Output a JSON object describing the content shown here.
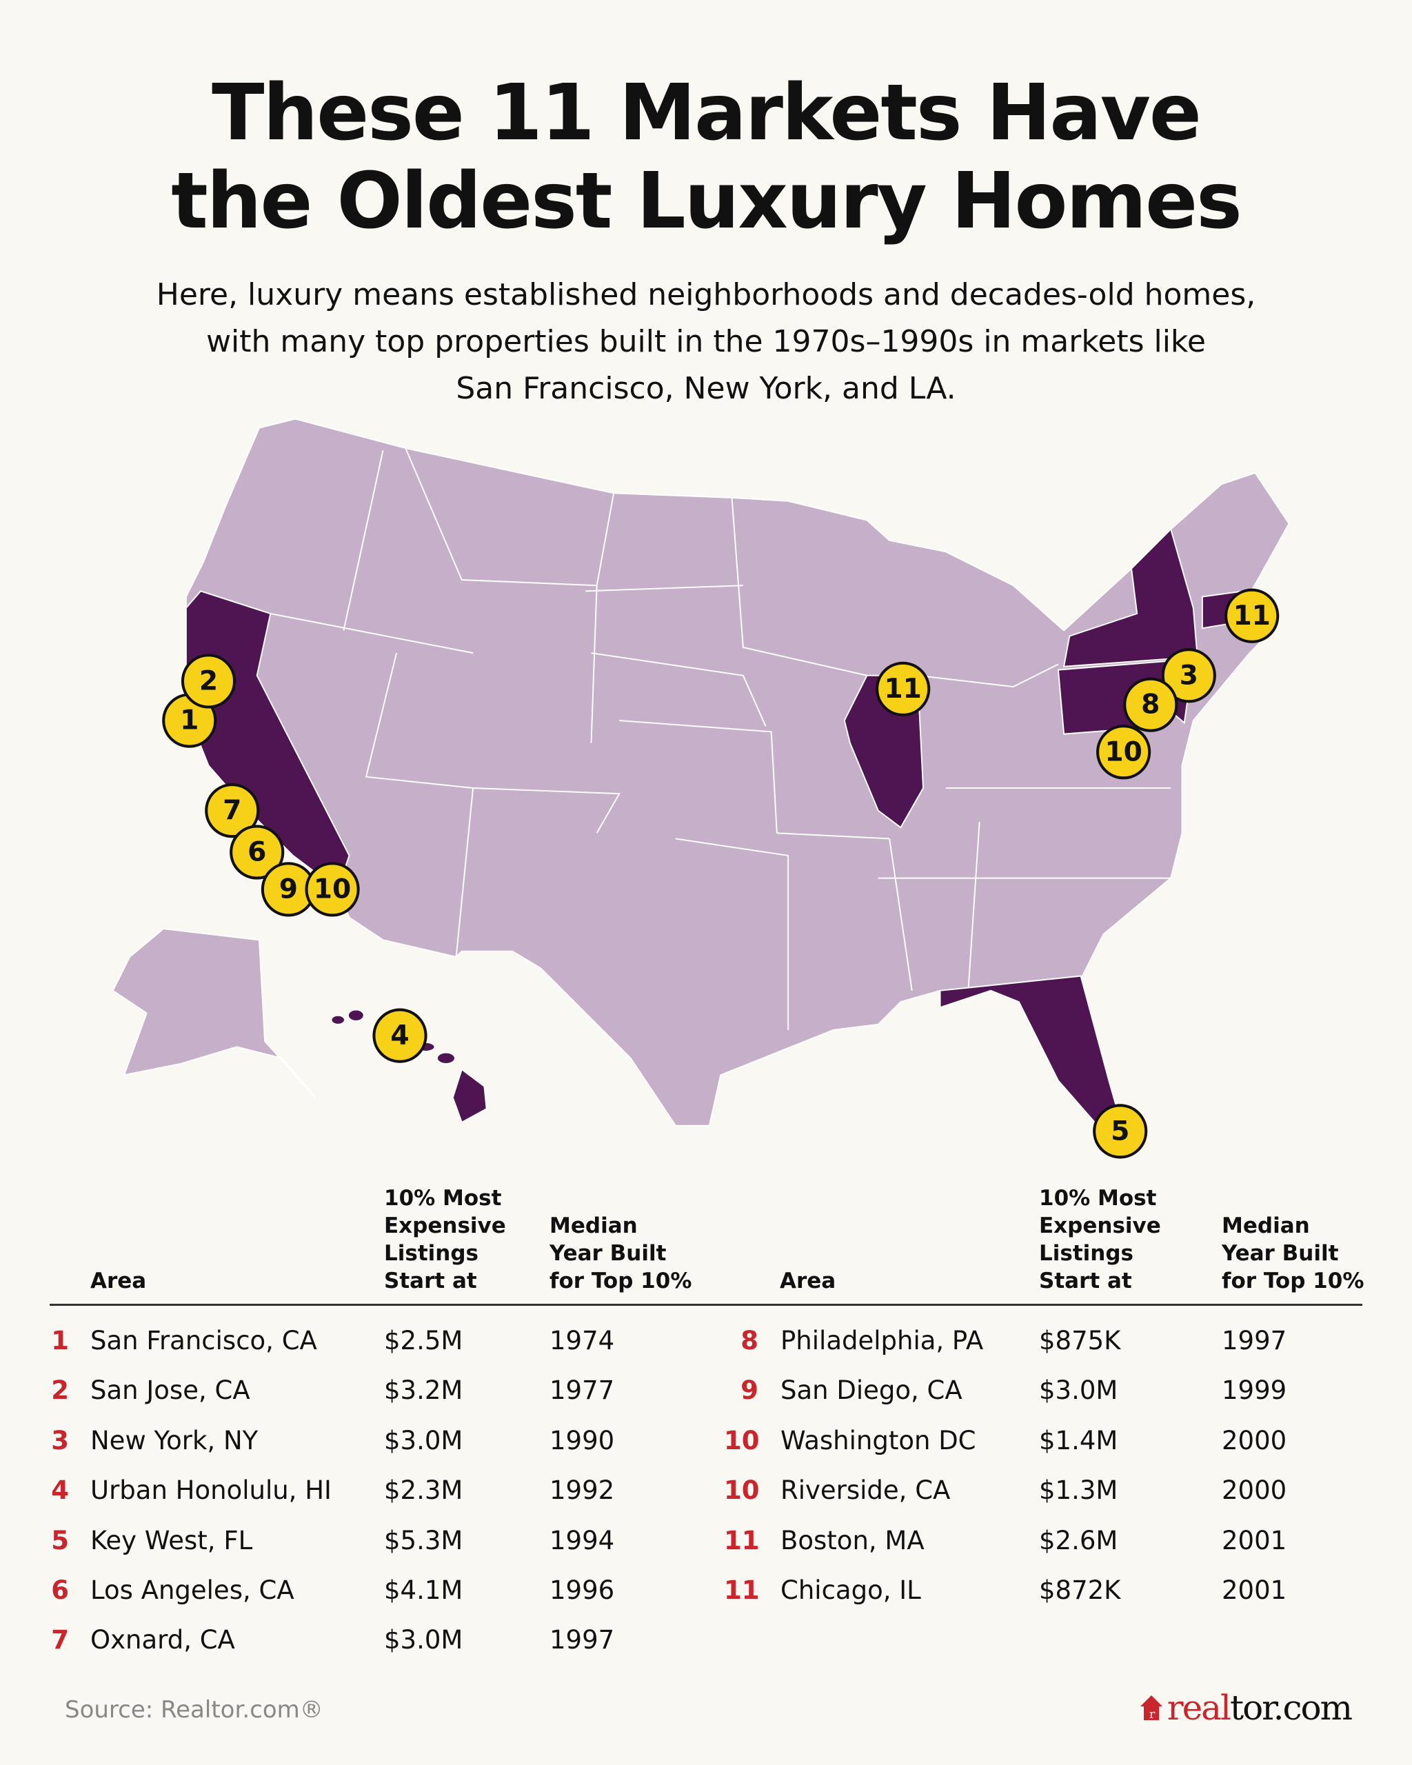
{
  "title": {
    "line1": "These 11 Markets Have",
    "line2": "the Oldest Luxury Homes"
  },
  "subtitle": {
    "line1": "Here, luxury means established neighborhoods and decades-old homes,",
    "line2": "with many top properties built in the 1970s–1990s in markets like",
    "line3": "San Francisco, New York, and LA."
  },
  "colors": {
    "state_default": "#c6afc9",
    "state_highlight": "#4e1552",
    "marker": "#f7d117",
    "rank": "#c8262c",
    "background": "#faf8f3"
  },
  "map": {
    "highlighted_states": [
      "California",
      "Illinois",
      "New York",
      "Pennsylvania",
      "New Jersey",
      "Massachusetts",
      "Florida",
      "Hawaii"
    ],
    "markers": [
      "1",
      "2",
      "7",
      "6",
      "9",
      "10",
      "4",
      "11",
      "11",
      "3",
      "8",
      "10",
      "5"
    ]
  },
  "table": {
    "headers": {
      "area": "Area",
      "price": [
        "10% Most",
        "Expensive",
        "Listings",
        "Start at"
      ],
      "year": [
        "Median",
        "Year Built",
        "for Top 10%"
      ]
    },
    "rows": [
      {
        "rank": "1",
        "area": "San Francisco, CA",
        "price": "$2.5M",
        "year": "1974"
      },
      {
        "rank": "2",
        "area": "San Jose, CA",
        "price": "$3.2M",
        "year": "1977"
      },
      {
        "rank": "3",
        "area": "New York, NY",
        "price": "$3.0M",
        "year": "1990"
      },
      {
        "rank": "4",
        "area": "Urban Honolulu, HI",
        "price": "$2.3M",
        "year": "1992"
      },
      {
        "rank": "5",
        "area": "Key West, FL",
        "price": "$5.3M",
        "year": "1994"
      },
      {
        "rank": "6",
        "area": "Los Angeles, CA",
        "price": "$4.1M",
        "year": "1996"
      },
      {
        "rank": "7",
        "area": "Oxnard, CA",
        "price": "$3.0M",
        "year": "1997"
      },
      {
        "rank": "8",
        "area": "Philadelphia, PA",
        "price": "$875K",
        "year": "1997"
      },
      {
        "rank": "9",
        "area": "San Diego, CA",
        "price": "$3.0M",
        "year": "1999"
      },
      {
        "rank": "10",
        "area": "Washington DC",
        "price": "$1.4M",
        "year": "2000"
      },
      {
        "rank": "10",
        "area": "Riverside, CA",
        "price": "$1.3M",
        "year": "2000"
      },
      {
        "rank": "11",
        "area": "Boston, MA",
        "price": "$2.6M",
        "year": "2001"
      },
      {
        "rank": "11",
        "area": "Chicago, IL",
        "price": "$872K",
        "year": "2001"
      }
    ]
  },
  "footer": {
    "source": "Source: Realtor.com®",
    "logo_red": "real",
    "logo_dark": "tor.com"
  }
}
